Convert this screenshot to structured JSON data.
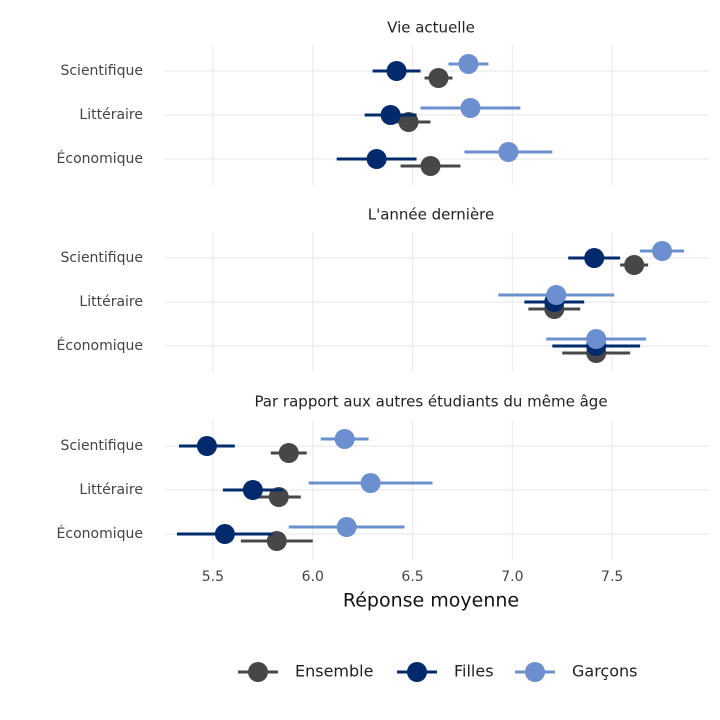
{
  "chart_data": {
    "type": "dot",
    "xlabel": "Réponse moyenne",
    "xlim": [
      5.26,
      7.98
    ],
    "xticks": [
      5.5,
      {
        "value": 6,
        "label": "6.0"
      },
      6.5,
      {
        "value": 7,
        "label": "7.0"
      },
      7.5
    ],
    "grid": true,
    "legend": "bottom",
    "categories": [
      "Scientifique",
      "Littéraire",
      "Économique"
    ],
    "series": [
      {
        "name": "Ensemble",
        "color": "#474747"
      },
      {
        "name": "Filles",
        "color": "#002a6b"
      },
      {
        "name": "Garçons",
        "color": "#6b8fcf"
      }
    ],
    "facets": [
      {
        "title": "Vie actuelle",
        "series": [
          {
            "values": [
              6.63,
              6.48,
              6.59
            ],
            "errors": [
              0.07,
              0.11,
              0.15
            ]
          },
          {
            "values": [
              6.42,
              6.39,
              6.32
            ],
            "errors": [
              0.12,
              0.13,
              0.2
            ]
          },
          {
            "values": [
              6.78,
              6.79,
              6.98
            ],
            "errors": [
              0.1,
              0.25,
              0.22
            ]
          }
        ]
      },
      {
        "title": "L'année dernière",
        "series": [
          {
            "values": [
              7.61,
              7.21,
              7.42
            ],
            "errors": [
              0.07,
              0.13,
              0.17
            ]
          },
          {
            "values": [
              7.41,
              7.21,
              7.42
            ],
            "errors": [
              0.13,
              0.15,
              0.22
            ]
          },
          {
            "values": [
              7.75,
              7.22,
              7.42
            ],
            "errors": [
              0.11,
              0.29,
              0.25
            ]
          }
        ]
      },
      {
        "title": "Par rapport aux autres étudiants du même âge",
        "series": [
          {
            "values": [
              5.88,
              5.83,
              5.82
            ],
            "errors": [
              0.09,
              0.11,
              0.18
            ]
          },
          {
            "values": [
              5.47,
              5.7,
              5.56
            ],
            "errors": [
              0.14,
              0.15,
              0.24
            ]
          },
          {
            "values": [
              6.16,
              6.29,
              6.17
            ],
            "errors": [
              0.12,
              0.31,
              0.29
            ]
          }
        ]
      }
    ]
  }
}
